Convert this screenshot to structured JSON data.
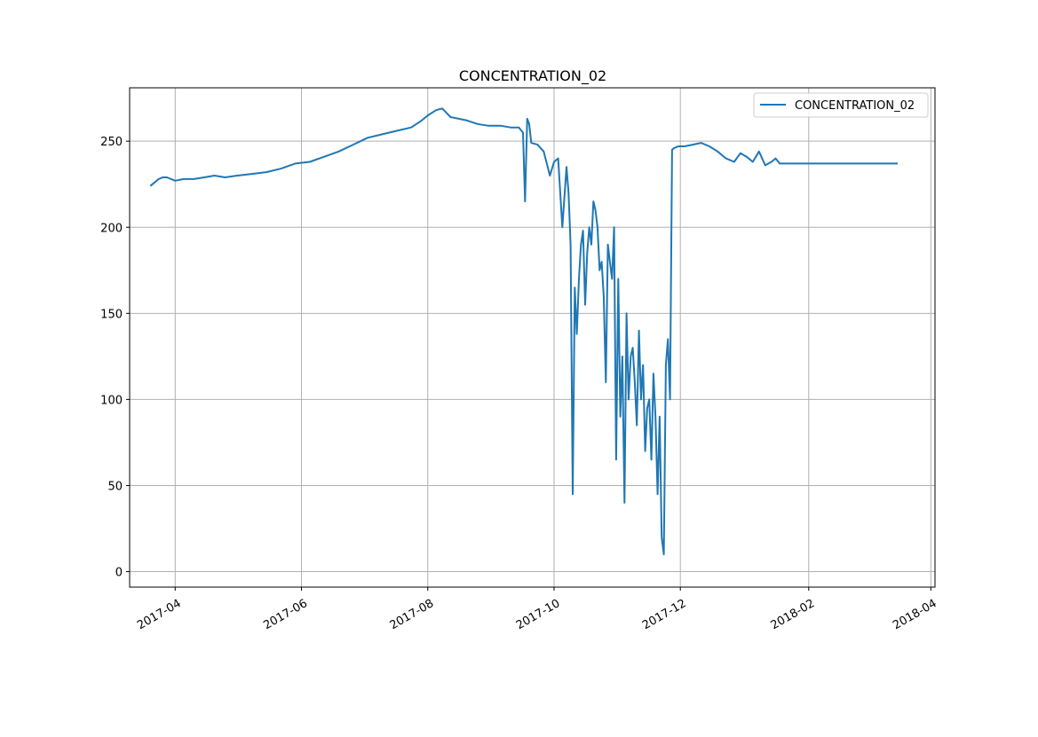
{
  "chart_data": {
    "type": "line",
    "title": "CONCENTRATION_02",
    "xlabel": "",
    "ylabel": "",
    "x_axis_type": "date",
    "xlim": [
      "2017-03-10",
      "2018-04-03"
    ],
    "ylim": [
      -9,
      281
    ],
    "x_ticks": [
      "2017-04-01",
      "2017-06-01",
      "2017-08-01",
      "2017-10-01",
      "2017-12-01",
      "2018-02-01",
      "2018-04-01"
    ],
    "x_tick_labels": [
      "2017-04",
      "2017-06",
      "2017-08",
      "2017-10",
      "2017-12",
      "2018-02",
      "2018-04"
    ],
    "y_ticks": [
      0,
      50,
      100,
      150,
      200,
      250
    ],
    "y_tick_labels": [
      "0",
      "50",
      "100",
      "150",
      "200",
      "250"
    ],
    "grid": true,
    "legend_position": "upper-right",
    "line_color": "#1f77b4",
    "series": [
      {
        "name": "CONCENTRATION_02",
        "x": [
          "2017-03-20",
          "2017-03-22",
          "2017-03-24",
          "2017-03-26",
          "2017-03-28",
          "2017-04-01",
          "2017-04-05",
          "2017-04-10",
          "2017-04-15",
          "2017-04-20",
          "2017-04-25",
          "2017-05-01",
          "2017-05-08",
          "2017-05-15",
          "2017-05-22",
          "2017-05-29",
          "2017-06-05",
          "2017-06-12",
          "2017-06-19",
          "2017-06-26",
          "2017-07-03",
          "2017-07-10",
          "2017-07-17",
          "2017-07-24",
          "2017-07-29",
          "2017-08-01",
          "2017-08-05",
          "2017-08-08",
          "2017-08-12",
          "2017-08-16",
          "2017-08-20",
          "2017-08-25",
          "2017-08-30",
          "2017-09-05",
          "2017-09-10",
          "2017-09-14",
          "2017-09-16",
          "2017-09-17",
          "2017-09-18",
          "2017-09-18",
          "2017-09-19",
          "2017-09-20",
          "2017-09-23",
          "2017-09-26",
          "2017-09-29",
          "2017-10-01",
          "2017-10-03",
          "2017-10-05",
          "2017-10-07",
          "2017-10-08",
          "2017-10-09",
          "2017-10-10",
          "2017-10-11",
          "2017-10-12",
          "2017-10-13",
          "2017-10-14",
          "2017-10-15",
          "2017-10-16",
          "2017-10-17",
          "2017-10-18",
          "2017-10-19",
          "2017-10-20",
          "2017-10-21",
          "2017-10-22",
          "2017-10-23",
          "2017-10-24",
          "2017-10-25",
          "2017-10-26",
          "2017-10-27",
          "2017-10-28",
          "2017-10-29",
          "2017-10-30",
          "2017-10-31",
          "2017-11-01",
          "2017-11-02",
          "2017-11-03",
          "2017-11-04",
          "2017-11-05",
          "2017-11-06",
          "2017-11-07",
          "2017-11-08",
          "2017-11-09",
          "2017-11-10",
          "2017-11-11",
          "2017-11-12",
          "2017-11-13",
          "2017-11-14",
          "2017-11-15",
          "2017-11-16",
          "2017-11-17",
          "2017-11-18",
          "2017-11-19",
          "2017-11-20",
          "2017-11-21",
          "2017-11-22",
          "2017-11-23",
          "2017-11-24",
          "2017-11-25",
          "2017-11-26",
          "2017-11-27",
          "2017-11-28",
          "2017-11-30",
          "2017-12-03",
          "2017-12-07",
          "2017-12-11",
          "2017-12-15",
          "2017-12-19",
          "2017-12-23",
          "2017-12-27",
          "2017-12-30",
          "2018-01-02",
          "2018-01-05",
          "2018-01-08",
          "2018-01-11",
          "2018-01-14",
          "2018-01-16",
          "2018-01-18",
          "2018-02-01",
          "2018-03-01",
          "2018-03-16"
        ],
        "values": [
          224,
          226,
          228,
          229,
          229,
          227,
          228,
          228,
          229,
          230,
          229,
          230,
          231,
          232,
          234,
          237,
          238,
          241,
          244,
          248,
          252,
          254,
          256,
          258,
          262,
          265,
          268,
          269,
          264,
          263,
          262,
          260,
          259,
          259,
          258,
          258,
          255,
          215,
          262,
          263,
          260,
          249,
          248,
          244,
          230,
          238,
          240,
          200,
          235,
          220,
          190,
          45,
          165,
          138,
          170,
          190,
          198,
          155,
          185,
          200,
          190,
          215,
          210,
          200,
          175,
          180,
          160,
          110,
          190,
          180,
          170,
          200,
          65,
          170,
          90,
          125,
          40,
          150,
          100,
          125,
          130,
          110,
          85,
          140,
          100,
          120,
          70,
          95,
          100,
          65,
          115,
          90,
          45,
          90,
          20,
          10,
          120,
          135,
          100,
          245,
          246,
          247,
          247,
          248,
          249,
          247,
          244,
          240,
          238,
          243,
          241,
          238,
          244,
          236,
          238,
          240,
          237,
          237,
          237,
          237
        ]
      }
    ]
  }
}
